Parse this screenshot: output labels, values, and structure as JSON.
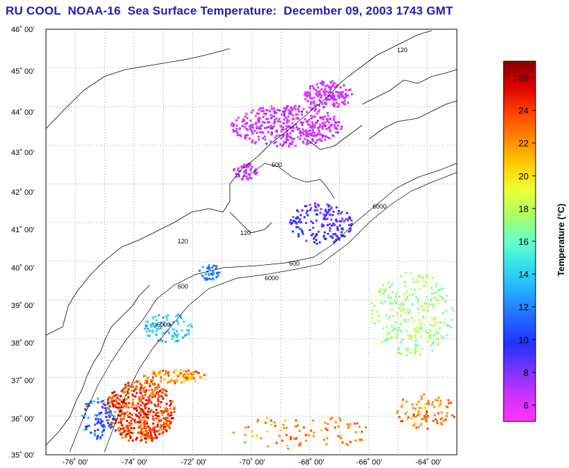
{
  "title": "RU COOL  NOAA-16  Sea Surface Temperature:  December 09, 2003 1743 GMT",
  "map": {
    "lon_range": [
      -77,
      -63
    ],
    "lat_range": [
      35,
      46
    ],
    "lat_labels": [
      "35˚ 00'",
      "36˚ 00'",
      "37˚ 00'",
      "38˚ 00'",
      "39˚ 00'",
      "40˚ 00'",
      "41˚ 00'",
      "42˚ 00'",
      "43˚ 00'",
      "44˚ 00'",
      "45˚ 00'",
      "46˚ 00'"
    ],
    "lon_labels": [
      "-76˚ 00'",
      "-74˚ 00'",
      "-72˚ 00'",
      "-70˚ 00'",
      "-68˚ 00'",
      "-66˚ 00'",
      "-64˚ 00'"
    ],
    "contour_labels": [
      "120",
      "600",
      "6000"
    ],
    "colors": {
      "land_line": "#000000",
      "grid": "#000000",
      "background": "#ffffff"
    }
  },
  "colorbar": {
    "title": "Temperature (°C)",
    "min": 5,
    "max": 27,
    "ticks": [
      "6",
      "8",
      "10",
      "12",
      "14",
      "16",
      "18",
      "20",
      "22",
      "24",
      "26"
    ],
    "tick_values": [
      6,
      8,
      10,
      12,
      14,
      16,
      18,
      20,
      22,
      24,
      26
    ],
    "stops": [
      "#ff33ff",
      "#cc33ff",
      "#7a33ff",
      "#2233ff",
      "#2266ff",
      "#22aaff",
      "#33ddee",
      "#66ffcc",
      "#aaff66",
      "#eeff33",
      "#ffcc00",
      "#ff8800",
      "#ff4400",
      "#dd0000",
      "#880000"
    ]
  }
}
